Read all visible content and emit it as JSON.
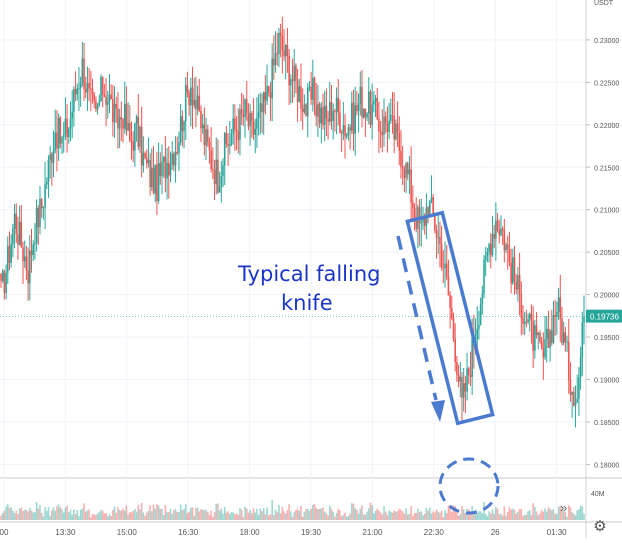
{
  "header": {
    "currency": "USDT"
  },
  "price_tag": {
    "value": "0.19736",
    "color": "#26a69a"
  },
  "annotation": {
    "line1": "Typical falling",
    "line2": "knife",
    "color": "#1a35c8"
  },
  "shape_color": "#4a7bd0",
  "volume_axis_label": "40M",
  "scroll_glyph": "»",
  "settings_icon": "⚙",
  "colors": {
    "up": "#26a69a",
    "down": "#ef5350",
    "grid": "#f0f3fa",
    "axis_text": "#555555"
  },
  "chart_data": {
    "type": "candlestick",
    "y_ticks": [
      "0.23000",
      "0.22500",
      "0.22000",
      "0.21500",
      "0.21000",
      "0.20500",
      "0.20000",
      "0.19500",
      "0.19000",
      "0.18500",
      "0.18000"
    ],
    "ylim": [
      0.1784,
      0.2347
    ],
    "x_ticks": [
      "00",
      "13:30",
      "15:00",
      "16:30",
      "18:00",
      "19:30",
      "21:00",
      "22:30",
      "26",
      "01:30"
    ],
    "grid": true,
    "close_series": [
      0.2,
      0.204,
      0.209,
      0.206,
      0.203,
      0.208,
      0.2105,
      0.215,
      0.2195,
      0.218,
      0.22,
      0.224,
      0.227,
      0.223,
      0.221,
      0.2245,
      0.223,
      0.22,
      0.2215,
      0.218,
      0.2195,
      0.216,
      0.214,
      0.213,
      0.215,
      0.2165,
      0.218,
      0.222,
      0.225,
      0.2215,
      0.2185,
      0.216,
      0.214,
      0.217,
      0.219,
      0.22,
      0.2215,
      0.219,
      0.2205,
      0.2225,
      0.226,
      0.23,
      0.228,
      0.2255,
      0.224,
      0.222,
      0.2235,
      0.2215,
      0.2205,
      0.2225,
      0.221,
      0.2195,
      0.221,
      0.223,
      0.222,
      0.2215,
      0.22,
      0.2205,
      0.219,
      0.217,
      0.214,
      0.21,
      0.2075,
      0.211,
      0.2085,
      0.205,
      0.2,
      0.194,
      0.187,
      0.191,
      0.196,
      0.201,
      0.206,
      0.209,
      0.2075,
      0.204,
      0.201,
      0.1985,
      0.196,
      0.194,
      0.1925,
      0.1955,
      0.199,
      0.195,
      0.19,
      0.188,
      0.1974
    ]
  }
}
